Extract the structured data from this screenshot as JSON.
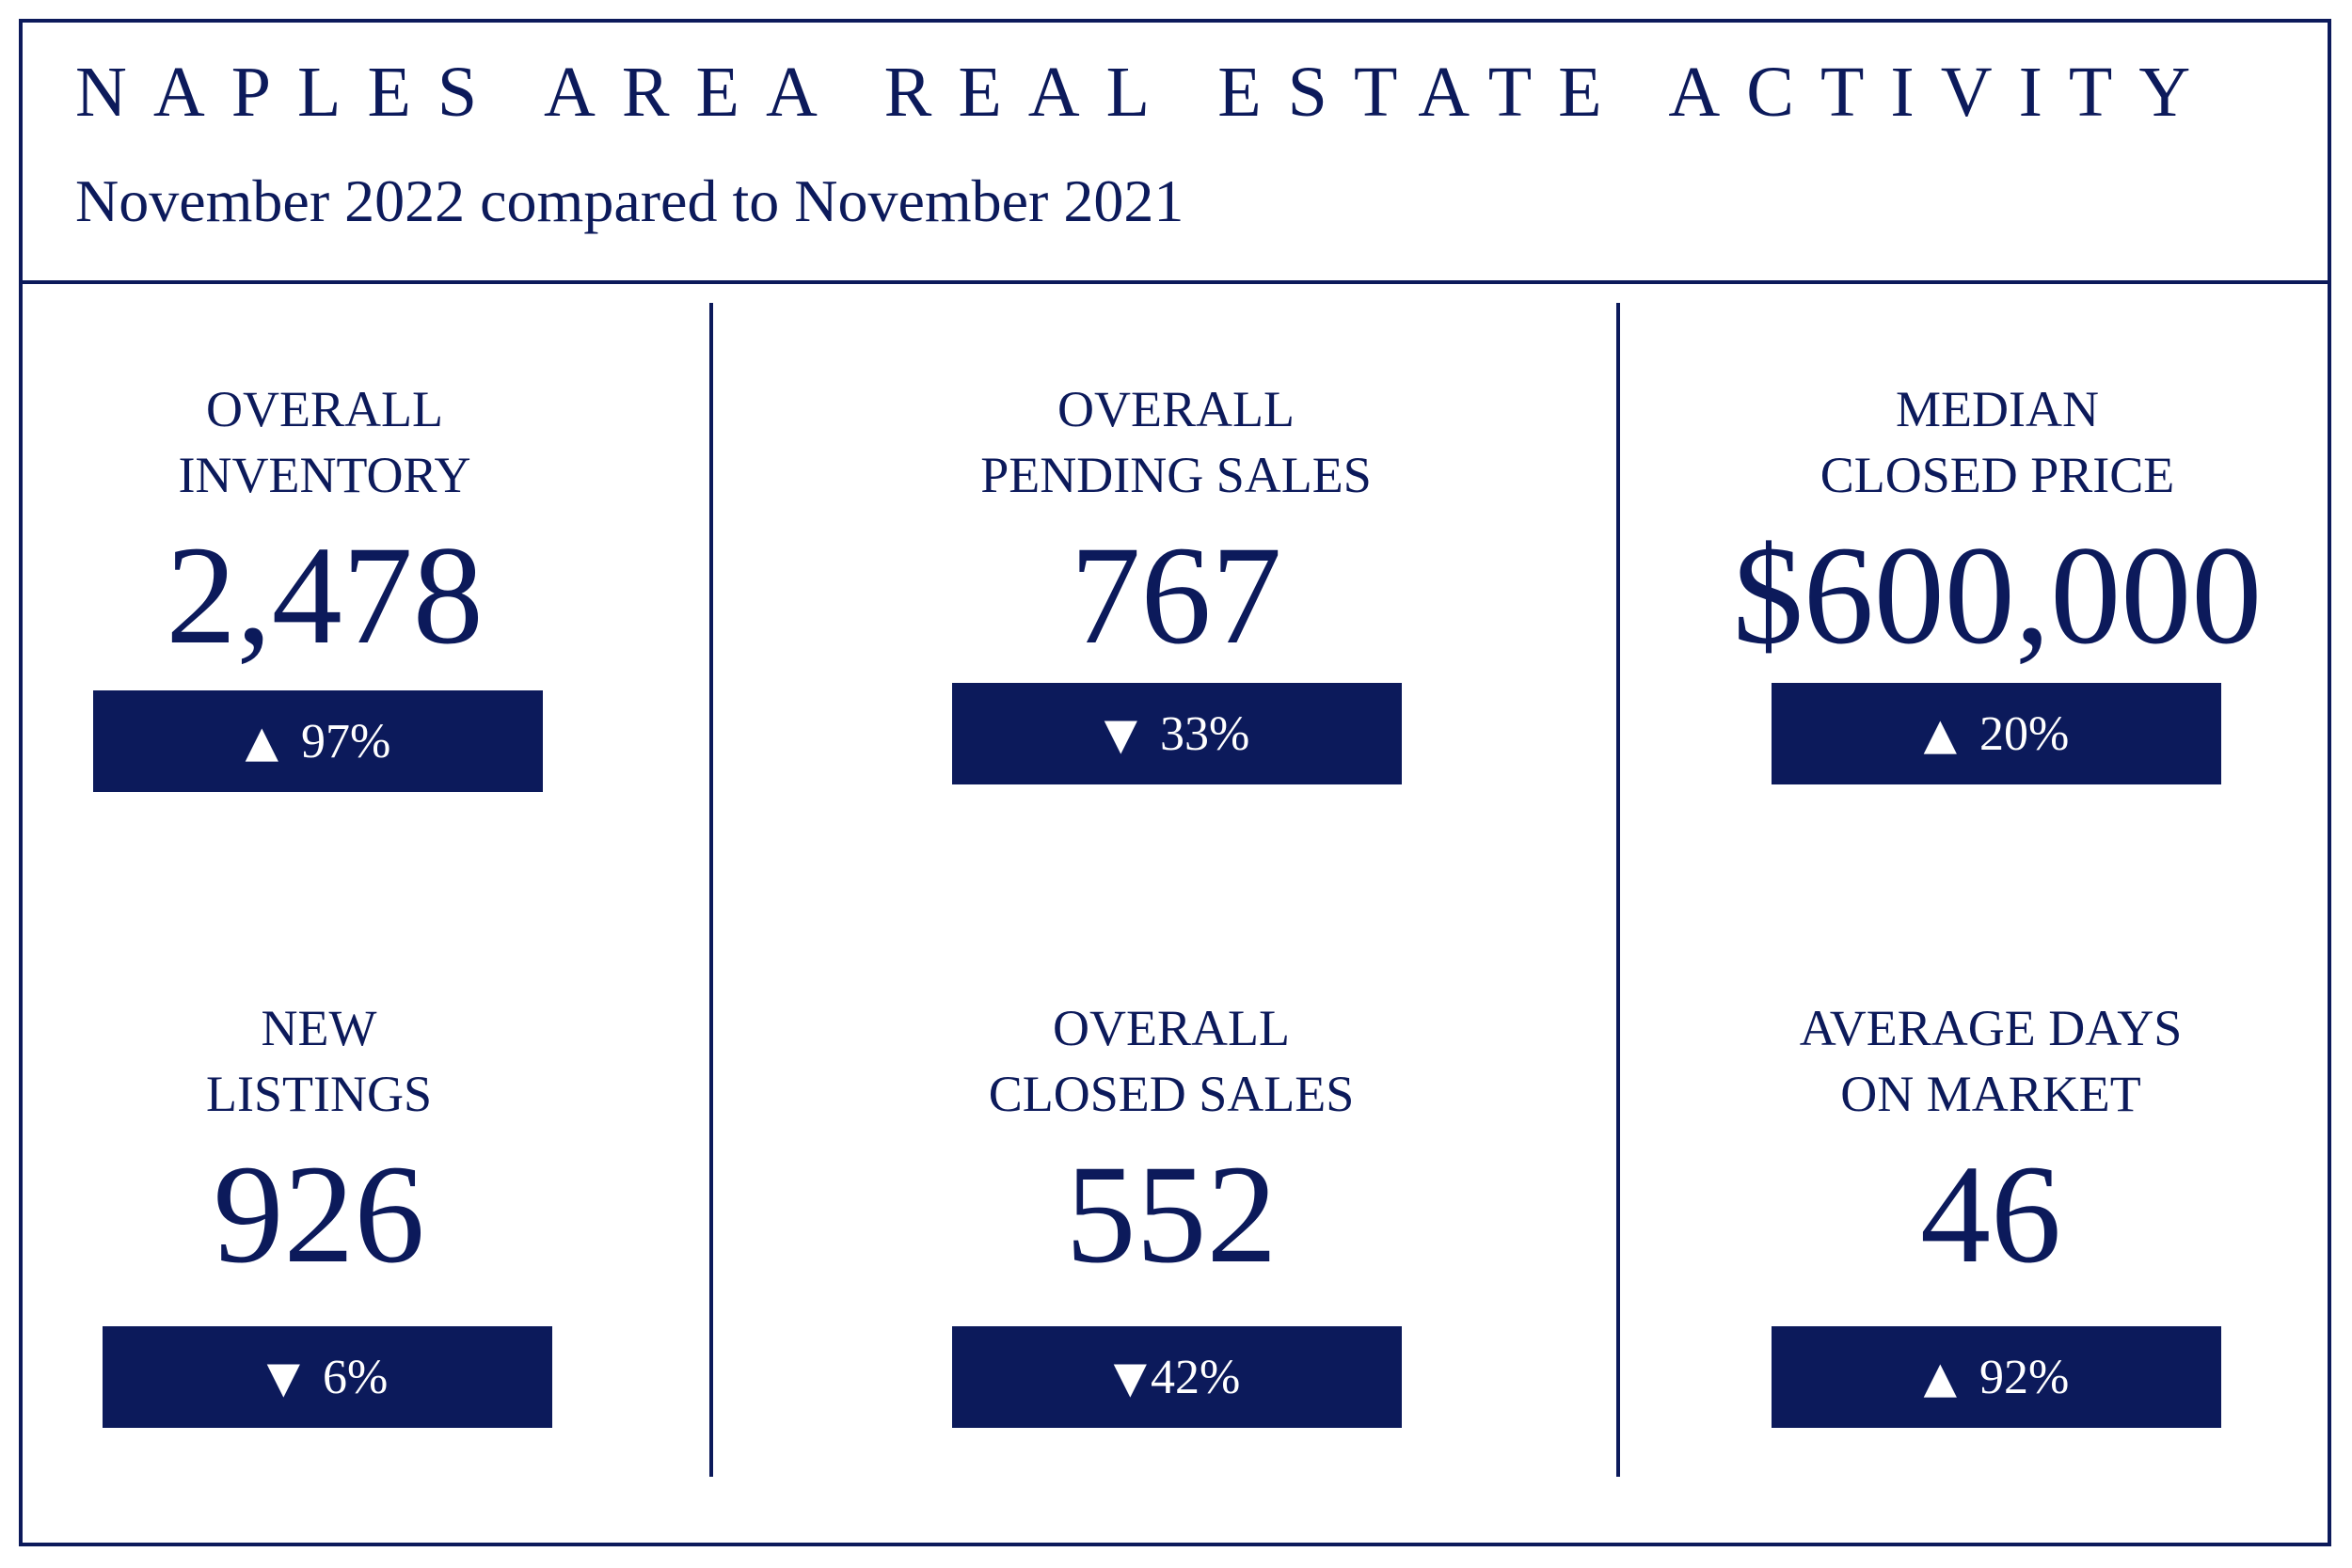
{
  "header": {
    "title": "NAPLES AREA REAL ESTATE ACTIVITY",
    "subtitle": "November 2022 compared to November 2021"
  },
  "metrics": [
    {
      "label_line1": "OVERALL",
      "label_line2": "INVENTORY",
      "value": "2,478",
      "direction": "up",
      "arrow": "▲",
      "change": "97%"
    },
    {
      "label_line1": "OVERALL",
      "label_line2": "PENDING SALES",
      "value": "767",
      "direction": "down",
      "arrow": "▼",
      "change": "33%"
    },
    {
      "label_line1": "MEDIAN",
      "label_line2": "CLOSED PRICE",
      "value": "$600,000",
      "direction": "up",
      "arrow": "▲",
      "change": "20%"
    },
    {
      "label_line1": "NEW",
      "label_line2": "LISTINGS",
      "value": "926",
      "direction": "down",
      "arrow": "▼",
      "change": "6%"
    },
    {
      "label_line1": "OVERALL",
      "label_line2": "CLOSED SALES",
      "value": "552",
      "direction": "down",
      "arrow": "▼",
      "change": "42%"
    },
    {
      "label_line1": "AVERAGE DAYS",
      "label_line2": "ON MARKET",
      "value": "46",
      "direction": "up",
      "arrow": "▲",
      "change": "92%"
    }
  ],
  "colors": {
    "navy": "#0c1a5b",
    "background": "#ffffff",
    "box_text": "#ffffff"
  }
}
